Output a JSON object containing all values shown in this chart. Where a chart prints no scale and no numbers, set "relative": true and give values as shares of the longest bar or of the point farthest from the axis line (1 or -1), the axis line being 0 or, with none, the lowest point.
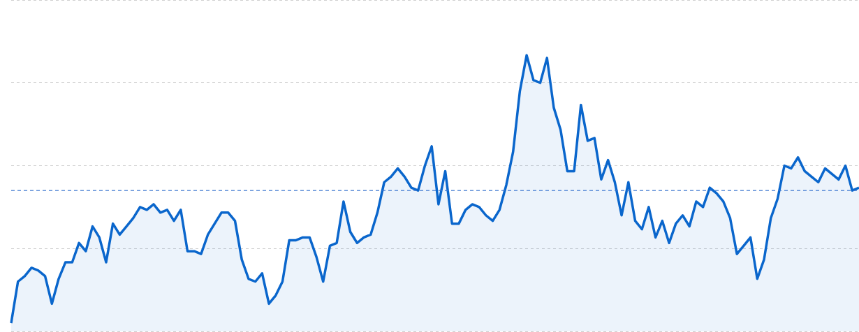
{
  "chart_data": {
    "type": "area",
    "relative": true,
    "grid": "y",
    "legend": false,
    "marker": "none",
    "line_style": "solid",
    "categories": [
      null,
      null,
      null,
      null,
      null,
      null,
      null,
      null,
      null,
      null,
      null,
      null,
      null,
      null,
      null,
      null,
      null,
      null,
      null,
      null,
      null,
      null,
      null,
      null,
      null,
      null,
      null,
      null,
      null,
      null,
      null,
      null,
      null,
      null,
      null,
      null,
      null,
      null,
      null,
      null,
      null,
      null,
      null,
      null,
      null,
      null,
      null,
      null,
      null,
      null,
      null,
      null,
      null,
      null,
      null,
      null,
      null,
      null,
      null,
      null,
      null,
      null,
      null,
      null,
      null,
      null,
      null,
      null,
      null,
      null,
      null,
      null,
      null,
      null,
      null,
      null,
      null,
      null,
      null,
      null,
      null,
      null,
      null,
      null,
      null,
      null,
      null,
      null,
      null,
      null,
      null,
      null,
      null,
      null,
      null,
      null,
      null,
      null,
      null,
      null,
      null,
      null,
      null,
      null,
      null,
      null,
      null,
      null,
      null,
      null,
      null,
      null,
      null,
      null,
      null,
      null,
      null,
      null,
      null,
      null,
      null,
      null,
      null,
      null,
      null,
      null
    ],
    "series": [
      {
        "color": "#0a66cc",
        "values": [
          0.03,
          0.18,
          0.2,
          0.23,
          0.22,
          0.2,
          0.1,
          0.19,
          0.25,
          0.25,
          0.32,
          0.29,
          0.38,
          0.34,
          0.25,
          0.39,
          0.35,
          0.38,
          0.41,
          0.45,
          0.44,
          0.46,
          0.43,
          0.44,
          0.4,
          0.44,
          0.29,
          0.29,
          0.28,
          0.35,
          0.39,
          0.43,
          0.43,
          0.4,
          0.26,
          0.19,
          0.18,
          0.21,
          0.1,
          0.13,
          0.18,
          0.33,
          0.33,
          0.34,
          0.34,
          0.27,
          0.18,
          0.31,
          0.32,
          0.47,
          0.36,
          0.32,
          0.34,
          0.35,
          0.43,
          0.54,
          0.56,
          0.59,
          0.56,
          0.52,
          0.51,
          0.6,
          0.67,
          0.46,
          0.58,
          0.39,
          0.39,
          0.44,
          0.46,
          0.45,
          0.42,
          0.4,
          0.44,
          0.53,
          0.65,
          0.87,
          1.0,
          0.91,
          0.9,
          0.99,
          0.81,
          0.73,
          0.58,
          0.58,
          0.82,
          0.69,
          0.7,
          0.55,
          0.62,
          0.54,
          0.42,
          0.54,
          0.4,
          0.37,
          0.45,
          0.34,
          0.4,
          0.32,
          0.39,
          0.42,
          0.38,
          0.47,
          0.45,
          0.52,
          0.5,
          0.47,
          0.41,
          0.28,
          0.31,
          0.34,
          0.19,
          0.26,
          0.41,
          0.48,
          0.6,
          0.59,
          0.63,
          0.58,
          0.56,
          0.54,
          0.59,
          0.57,
          0.55,
          0.6,
          0.51,
          0.52
        ]
      }
    ],
    "ref_lines": [
      {
        "axis": "y",
        "value": 0.51,
        "color": "#3a75d0",
        "line_style": "dashed"
      }
    ]
  }
}
